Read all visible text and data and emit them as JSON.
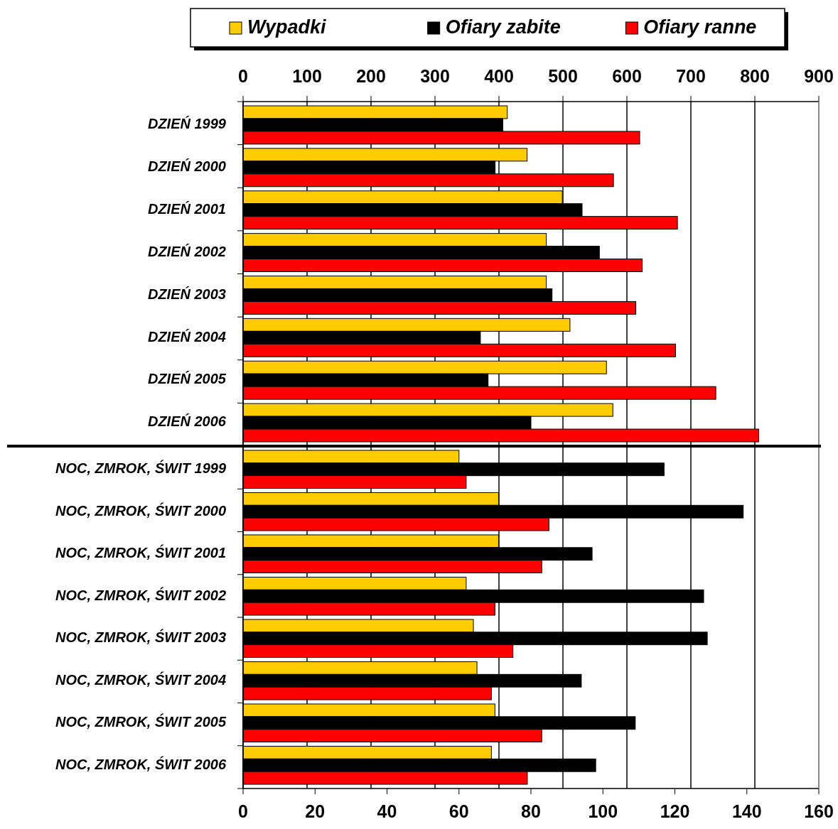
{
  "chart_data": [
    {
      "type": "bar",
      "orientation": "horizontal",
      "legend": "top",
      "grid": "x",
      "categories": [
        "DZIEŃ 1999",
        "DZIEŃ 2000",
        "DZIEŃ 2001",
        "DZIEŃ 2002",
        "DZIEŃ 2003",
        "DZIEŃ 2004",
        "DZIEŃ 2005",
        "DZIEŃ 2006"
      ],
      "xlim": [
        0,
        900
      ],
      "xticks": [
        0,
        100,
        200,
        300,
        400,
        500,
        600,
        700,
        800,
        900
      ],
      "series": [
        {
          "name": "Wypadki",
          "color": "#ffcc00",
          "values": [
            413,
            444,
            499,
            474,
            474,
            511,
            568,
            578
          ]
        },
        {
          "name": "Ofiary zabite",
          "color": "#000000",
          "values": [
            406,
            394,
            530,
            557,
            483,
            371,
            383,
            450
          ]
        },
        {
          "name": "Ofiary ranne",
          "color": "#ff0000",
          "values": [
            620,
            579,
            679,
            624,
            614,
            676,
            739,
            806
          ]
        }
      ]
    },
    {
      "type": "bar",
      "orientation": "horizontal",
      "categories": [
        "NOC, ZMROK, ŚWIT 1999",
        "NOC, ZMROK, ŚWIT 2000",
        "NOC, ZMROK, ŚWIT 2001",
        "NOC, ZMROK, ŚWIT 2002",
        "NOC, ZMROK, ŚWIT 2003",
        "NOC, ZMROK, ŚWIT 2004",
        "NOC, ZMROK, ŚWIT 2005",
        "NOC, ZMROK, ŚWIT 2006"
      ],
      "xlim": [
        0,
        160
      ],
      "xticks": [
        0,
        20,
        40,
        60,
        80,
        100,
        120,
        140,
        160
      ],
      "series": [
        {
          "color": "#ffcc00",
          "values": [
            60,
            71,
            71,
            62,
            64,
            65,
            70,
            69
          ]
        },
        {
          "color": "#000000",
          "values": [
            117,
            139,
            97,
            128,
            129,
            94,
            109,
            98
          ]
        },
        {
          "color": "#ff0000",
          "values": [
            62,
            85,
            83,
            70,
            75,
            69,
            83,
            79
          ]
        }
      ]
    }
  ]
}
